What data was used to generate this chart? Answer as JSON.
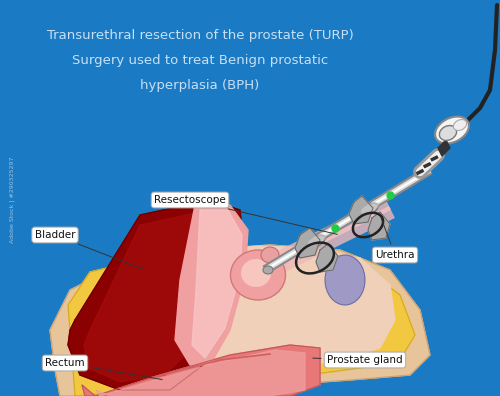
{
  "background_color": "#1a7bc4",
  "title_line1": "Transurethral resection of the prostate (TURP)",
  "title_line2": "Surgery used to treat Benign prostatic",
  "title_line3": "hyperplasia (BPH)",
  "title_color": "#c8dff5",
  "title_fontsize": 9.5,
  "label_fontsize": 7.5,
  "watermark_text": "Adobe Stock | #290325297"
}
